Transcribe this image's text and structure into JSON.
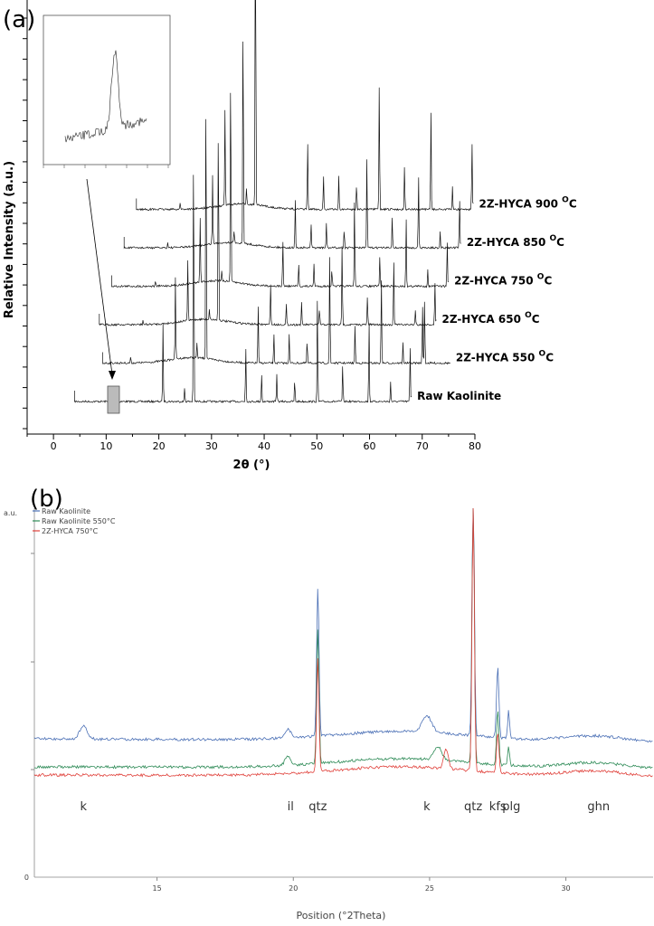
{
  "chart_data": [
    {
      "panel": "(a)",
      "type": "line",
      "xlabel": "2θ (°)",
      "ylabel": "Relative Intensity (a.u.)",
      "xlim": [
        -5,
        80
      ],
      "xticks": [
        0,
        10,
        20,
        30,
        40,
        50,
        60,
        70,
        80
      ],
      "series": [
        {
          "name": "Raw Kaolinite",
          "offset": 0,
          "shift": 0,
          "start": 4,
          "end": 68
        },
        {
          "name": "2Z-HYCA 550 °C",
          "offset": 1,
          "shift": 5,
          "start": 7,
          "end": 73
        },
        {
          "name": "2Z-HYCA 650 °C",
          "offset": 2,
          "shift": 10,
          "start": 4,
          "end": 68
        },
        {
          "name": "2Z-HYCA 750 °C",
          "offset": 3,
          "shift": 15,
          "start": 4,
          "end": 68
        },
        {
          "name": "2Z-HYCA 850 °C",
          "offset": 4,
          "shift": 20,
          "start": 4,
          "end": 68
        },
        {
          "name": "2Z-HYCA 900 °C",
          "offset": 5,
          "shift": 25,
          "start": 4,
          "end": 68
        }
      ],
      "series_labels": [
        {
          "text": "Raw Kaolinite",
          "sup": ""
        },
        {
          "text": "2Z-HYCA 550 ",
          "sup": "O",
          "unit": "C"
        },
        {
          "text": "2Z-HYCA 650 ",
          "sup": "O",
          "unit": "C"
        },
        {
          "text": "2Z-HYCA 750 ",
          "sup": "O",
          "unit": "C"
        },
        {
          "text": "2Z-HYCA 850 ",
          "sup": "O",
          "unit": "C"
        },
        {
          "text": "2Z-HYCA 900 ",
          "sup": "O",
          "unit": "C"
        }
      ],
      "peaks_2theta": [
        12.3,
        20.8,
        24.9,
        26.6,
        36.5,
        39.5,
        42.4,
        45.8,
        50.1,
        54.9,
        59.9,
        64.0,
        67.7,
        68.1
      ],
      "inset": "zoom on ~12° kaolinite peak"
    },
    {
      "panel": "(b)",
      "type": "line",
      "xlabel": "Position (°2Theta)",
      "ylabel": "a.u.",
      "xlim": [
        10.5,
        33.2
      ],
      "xticks": [
        15,
        20,
        25,
        30
      ],
      "yticks": [
        "0"
      ],
      "legend": [
        "Raw Kaolinite",
        "Raw Kaolinite 550°C",
        "2Z-HYCA 750°C"
      ],
      "colors": [
        "#4a6fb5",
        "#2e8b57",
        "#e0403a"
      ],
      "annotations": [
        {
          "text": "k",
          "x": 12.3
        },
        {
          "text": "il",
          "x": 19.9
        },
        {
          "text": "qtz",
          "x": 20.9
        },
        {
          "text": "k",
          "x": 24.9
        },
        {
          "text": "qtz",
          "x": 26.6
        },
        {
          "text": "kfs",
          "x": 27.5
        },
        {
          "text": "plg",
          "x": 28.0
        },
        {
          "text": "ghn",
          "x": 31.2
        }
      ]
    }
  ],
  "panel_a_label": "(a)",
  "panel_b_label": "(b)"
}
